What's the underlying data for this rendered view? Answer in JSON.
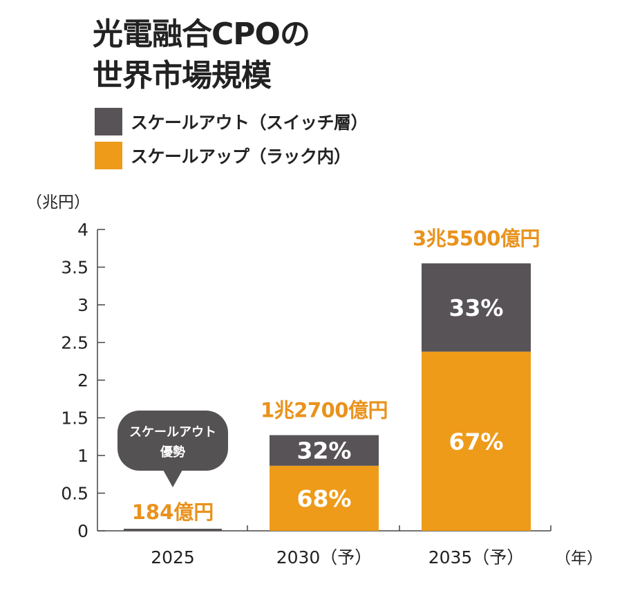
{
  "title_line1": "光電融合CPOの",
  "title_line2": "世界市場規模",
  "colors": {
    "scaleout": "#575356",
    "scaleup": "#ee9b1a",
    "accent_text": "#e9921c",
    "callout": "#555253",
    "axis": "#444444"
  },
  "legend": [
    {
      "label": "スケールアウト（スイッチ層）",
      "color": "#575356"
    },
    {
      "label": "スケールアップ（ラック内）",
      "color": "#ee9b1a"
    }
  ],
  "callout": {
    "line1": "スケールアウト",
    "line2": "優勢"
  },
  "chart_data": {
    "type": "bar",
    "stacked": true,
    "y_unit_label": "（兆円）",
    "x_unit_label": "（年）",
    "ylim": [
      0,
      4
    ],
    "yticks": [
      "0",
      "0.5",
      "1",
      "1.5",
      "2",
      "2.5",
      "3",
      "3.5",
      "4"
    ],
    "categories": [
      "2025",
      "2030（予）",
      "2035（予）"
    ],
    "totals": [
      0.0184,
      1.27,
      3.55
    ],
    "total_labels": [
      "184億円",
      "1兆2700億円",
      "3兆5500億円"
    ],
    "series": [
      {
        "name": "スケールアップ（ラック内）",
        "share_labels": [
          "",
          "68%",
          "67%"
        ],
        "share": [
          null,
          0.68,
          0.67
        ]
      },
      {
        "name": "スケールアウト（スイッチ層）",
        "share_labels": [
          "",
          "32%",
          "33%"
        ],
        "share": [
          1.0,
          0.32,
          0.33
        ]
      }
    ]
  }
}
